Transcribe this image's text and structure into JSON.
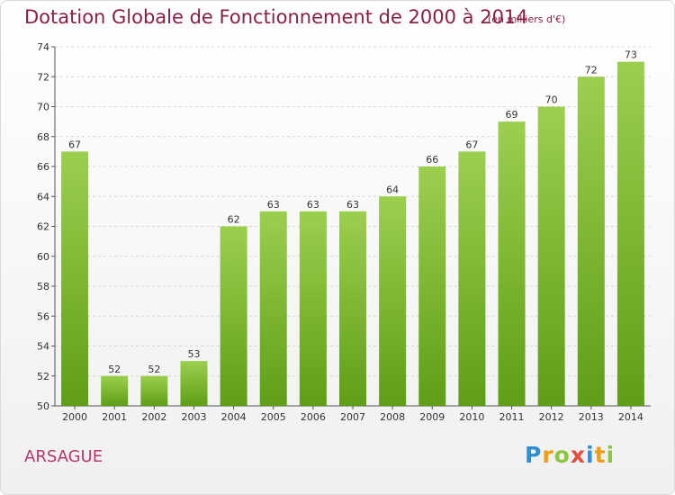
{
  "title": "Dotation Globale de Fonctionnement de 2000 à 2014",
  "subtitle": "(en milliers d'€)",
  "commune": "ARSAGUE",
  "logo": {
    "letters": [
      "P",
      "r",
      "o",
      "x",
      "i",
      "t",
      "i"
    ],
    "colors": [
      "#2e8fd6",
      "#f39c12",
      "#8cc63f",
      "#e74c3c",
      "#2e8fd6",
      "#f39c12",
      "#8cc63f"
    ]
  },
  "colors": {
    "bar_top": "#9ccf4e",
    "bar_bottom": "#5f9e16",
    "title": "#8a1f45",
    "commune": "#b5376b"
  },
  "chart_data": {
    "type": "bar",
    "categories": [
      "2000",
      "2001",
      "2002",
      "2003",
      "2004",
      "2005",
      "2006",
      "2007",
      "2008",
      "2009",
      "2010",
      "2011",
      "2012",
      "2013",
      "2014"
    ],
    "values": [
      67,
      52,
      52,
      53,
      62,
      63,
      63,
      63,
      64,
      66,
      67,
      69,
      70,
      72,
      73
    ],
    "yticks": [
      50,
      52,
      54,
      56,
      58,
      60,
      62,
      64,
      66,
      68,
      70,
      72,
      74
    ],
    "ylim": [
      50,
      74
    ],
    "grid": true
  }
}
